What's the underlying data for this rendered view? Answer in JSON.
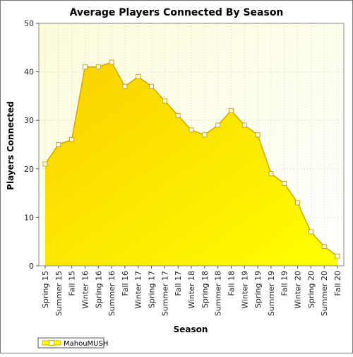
{
  "chart_data": {
    "type": "area",
    "title": "Average Players Connected By Season",
    "xlabel": "Season",
    "ylabel": "Players Connected",
    "ylim": [
      0,
      50
    ],
    "yticks": [
      0,
      10,
      20,
      30,
      40,
      50
    ],
    "grid": true,
    "legend_position": "bottom-left",
    "categories": [
      "Spring 15",
      "Summer 15",
      "Fall 15",
      "Winter 16",
      "Spring 16",
      "Summer 16",
      "Fall 16",
      "Winter 17",
      "Spring 17",
      "Summer 17",
      "Fall 17",
      "Winter 18",
      "Spring 18",
      "Summer 18",
      "Fall 18",
      "Winter 19",
      "Spring 19",
      "Summer 19",
      "Fall 19",
      "Winter 20",
      "Spring 20",
      "Summer 20",
      "Fall 20"
    ],
    "series": [
      {
        "name": "MahouMUSH",
        "values": [
          21,
          25,
          26,
          41,
          41,
          42,
          37,
          39,
          37,
          34,
          31,
          28,
          27,
          29,
          32,
          29,
          27,
          19,
          17,
          13,
          7,
          4,
          2
        ]
      }
    ],
    "colors": {
      "plot_background_top": "#fcfcda",
      "fill_top": "#f9d000",
      "fill_bottom": "#ffff00",
      "line": "#d2a600",
      "marker_fill": "#ffffff",
      "gridline": "#c7c7c7"
    }
  }
}
